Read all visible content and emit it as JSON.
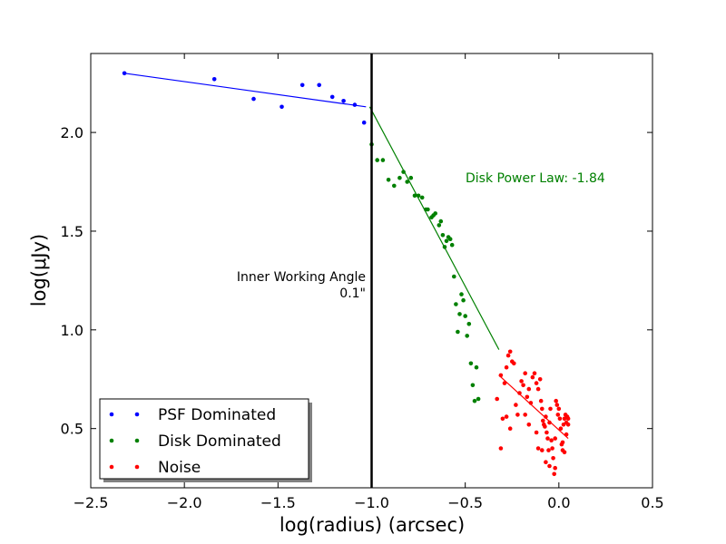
{
  "chart_data": {
    "type": "scatter",
    "xlabel": "log(radius) (arcsec)",
    "ylabel": "log(μJy)",
    "xlim": [
      -2.5,
      0.5
    ],
    "ylim": [
      0.2,
      2.4
    ],
    "xticks": [
      -2.5,
      -2.0,
      -1.5,
      -1.0,
      -0.5,
      0.0,
      0.5
    ],
    "xtick_labels": [
      "−2.5",
      "−2.0",
      "−1.5",
      "−1.0",
      "−0.5",
      "0.0",
      "0.5"
    ],
    "yticks": [
      0.5,
      1.0,
      1.5,
      2.0
    ],
    "ytick_labels": [
      "0.5",
      "1.0",
      "1.5",
      "2.0"
    ],
    "grid": false,
    "legend_position": "lower-left",
    "series": [
      {
        "name": "PSF Dominated",
        "color": "#0000ff",
        "points": [
          [
            -2.32,
            2.3
          ],
          [
            -1.84,
            2.27
          ],
          [
            -1.63,
            2.17
          ],
          [
            -1.48,
            2.13
          ],
          [
            -1.37,
            2.24
          ],
          [
            -1.28,
            2.24
          ],
          [
            -1.21,
            2.18
          ],
          [
            -1.15,
            2.16
          ],
          [
            -1.09,
            2.14
          ],
          [
            -1.04,
            2.05
          ]
        ],
        "fit": [
          [
            -2.32,
            2.3
          ],
          [
            -1.03,
            2.13
          ]
        ]
      },
      {
        "name": "Disk Dominated",
        "color": "#008000",
        "points": [
          [
            -1.0,
            1.94
          ],
          [
            -0.97,
            1.86
          ],
          [
            -0.94,
            1.86
          ],
          [
            -0.91,
            1.76
          ],
          [
            -0.88,
            1.73
          ],
          [
            -0.85,
            1.77
          ],
          [
            -0.83,
            1.8
          ],
          [
            -0.81,
            1.75
          ],
          [
            -0.79,
            1.77
          ],
          [
            -0.77,
            1.68
          ],
          [
            -0.75,
            1.68
          ],
          [
            -0.73,
            1.67
          ],
          [
            -0.71,
            1.61
          ],
          [
            -0.7,
            1.61
          ],
          [
            -0.68,
            1.57
          ],
          [
            -0.67,
            1.58
          ],
          [
            -0.66,
            1.59
          ],
          [
            -0.64,
            1.53
          ],
          [
            -0.63,
            1.55
          ],
          [
            -0.62,
            1.48
          ],
          [
            -0.61,
            1.42
          ],
          [
            -0.6,
            1.45
          ],
          [
            -0.59,
            1.47
          ],
          [
            -0.58,
            1.46
          ],
          [
            -0.57,
            1.43
          ],
          [
            -0.56,
            1.27
          ],
          [
            -0.55,
            1.13
          ],
          [
            -0.54,
            0.99
          ],
          [
            -0.53,
            1.08
          ],
          [
            -0.52,
            1.18
          ],
          [
            -0.51,
            1.15
          ],
          [
            -0.5,
            1.07
          ],
          [
            -0.49,
            0.97
          ],
          [
            -0.48,
            1.03
          ],
          [
            -0.47,
            0.83
          ],
          [
            -0.46,
            0.72
          ],
          [
            -0.45,
            0.64
          ],
          [
            -0.44,
            0.81
          ],
          [
            -0.43,
            0.65
          ]
        ],
        "fit": [
          [
            -1.01,
            2.13
          ],
          [
            -0.32,
            0.9
          ]
        ]
      },
      {
        "name": "Noise",
        "color": "#ff0000",
        "points": [
          [
            -0.33,
            0.65
          ],
          [
            -0.31,
            0.77
          ],
          [
            -0.29,
            0.73
          ],
          [
            -0.28,
            0.81
          ],
          [
            -0.27,
            0.87
          ],
          [
            -0.26,
            0.89
          ],
          [
            -0.25,
            0.84
          ],
          [
            -0.24,
            0.83
          ],
          [
            -0.23,
            0.62
          ],
          [
            -0.22,
            0.57
          ],
          [
            -0.21,
            0.68
          ],
          [
            -0.2,
            0.74
          ],
          [
            -0.19,
            0.72
          ],
          [
            -0.18,
            0.78
          ],
          [
            -0.17,
            0.66
          ],
          [
            -0.16,
            0.7
          ],
          [
            -0.15,
            0.63
          ],
          [
            -0.14,
            0.76
          ],
          [
            -0.13,
            0.78
          ],
          [
            -0.12,
            0.73
          ],
          [
            -0.11,
            0.7
          ],
          [
            -0.1,
            0.75
          ],
          [
            -0.095,
            0.64
          ],
          [
            -0.09,
            0.6
          ],
          [
            -0.085,
            0.54
          ],
          [
            -0.08,
            0.52
          ],
          [
            -0.075,
            0.51
          ],
          [
            -0.07,
            0.56
          ],
          [
            -0.065,
            0.48
          ],
          [
            -0.06,
            0.45
          ],
          [
            -0.055,
            0.39
          ],
          [
            -0.05,
            0.53
          ],
          [
            -0.045,
            0.6
          ],
          [
            -0.04,
            0.44
          ],
          [
            -0.035,
            0.4
          ],
          [
            -0.03,
            0.35
          ],
          [
            -0.025,
            0.27
          ],
          [
            -0.02,
            0.3
          ],
          [
            -0.015,
            0.64
          ],
          [
            -0.01,
            0.62
          ],
          [
            -0.005,
            0.57
          ],
          [
            0.0,
            0.6
          ],
          [
            0.005,
            0.55
          ],
          [
            0.01,
            0.5
          ],
          [
            0.015,
            0.42
          ],
          [
            0.02,
            0.39
          ],
          [
            0.025,
            0.52
          ],
          [
            0.03,
            0.55
          ],
          [
            0.035,
            0.57
          ],
          [
            0.04,
            0.53
          ],
          [
            0.045,
            0.56
          ],
          [
            0.05,
            0.55
          ],
          [
            -0.31,
            0.4
          ],
          [
            -0.3,
            0.55
          ],
          [
            -0.28,
            0.56
          ],
          [
            -0.26,
            0.5
          ],
          [
            -0.18,
            0.57
          ],
          [
            -0.16,
            0.52
          ],
          [
            -0.12,
            0.48
          ],
          [
            -0.11,
            0.4
          ],
          [
            -0.09,
            0.39
          ],
          [
            -0.07,
            0.33
          ],
          [
            -0.05,
            0.31
          ],
          [
            -0.02,
            0.45
          ],
          [
            0.02,
            0.43
          ],
          [
            0.03,
            0.38
          ],
          [
            0.04,
            0.47
          ],
          [
            0.05,
            0.52
          ]
        ],
        "fit": [
          [
            -0.32,
            0.77
          ],
          [
            0.05,
            0.45
          ]
        ]
      }
    ],
    "vline": {
      "x": -1.0,
      "color": "#000000"
    },
    "annotations": [
      {
        "id": "iwa",
        "lines": [
          "Inner Working Angle",
          "0.1\""
        ],
        "color": "#000000"
      },
      {
        "id": "power",
        "lines": [
          "Disk Power Law: -1.84"
        ],
        "color": "#008000"
      }
    ]
  }
}
